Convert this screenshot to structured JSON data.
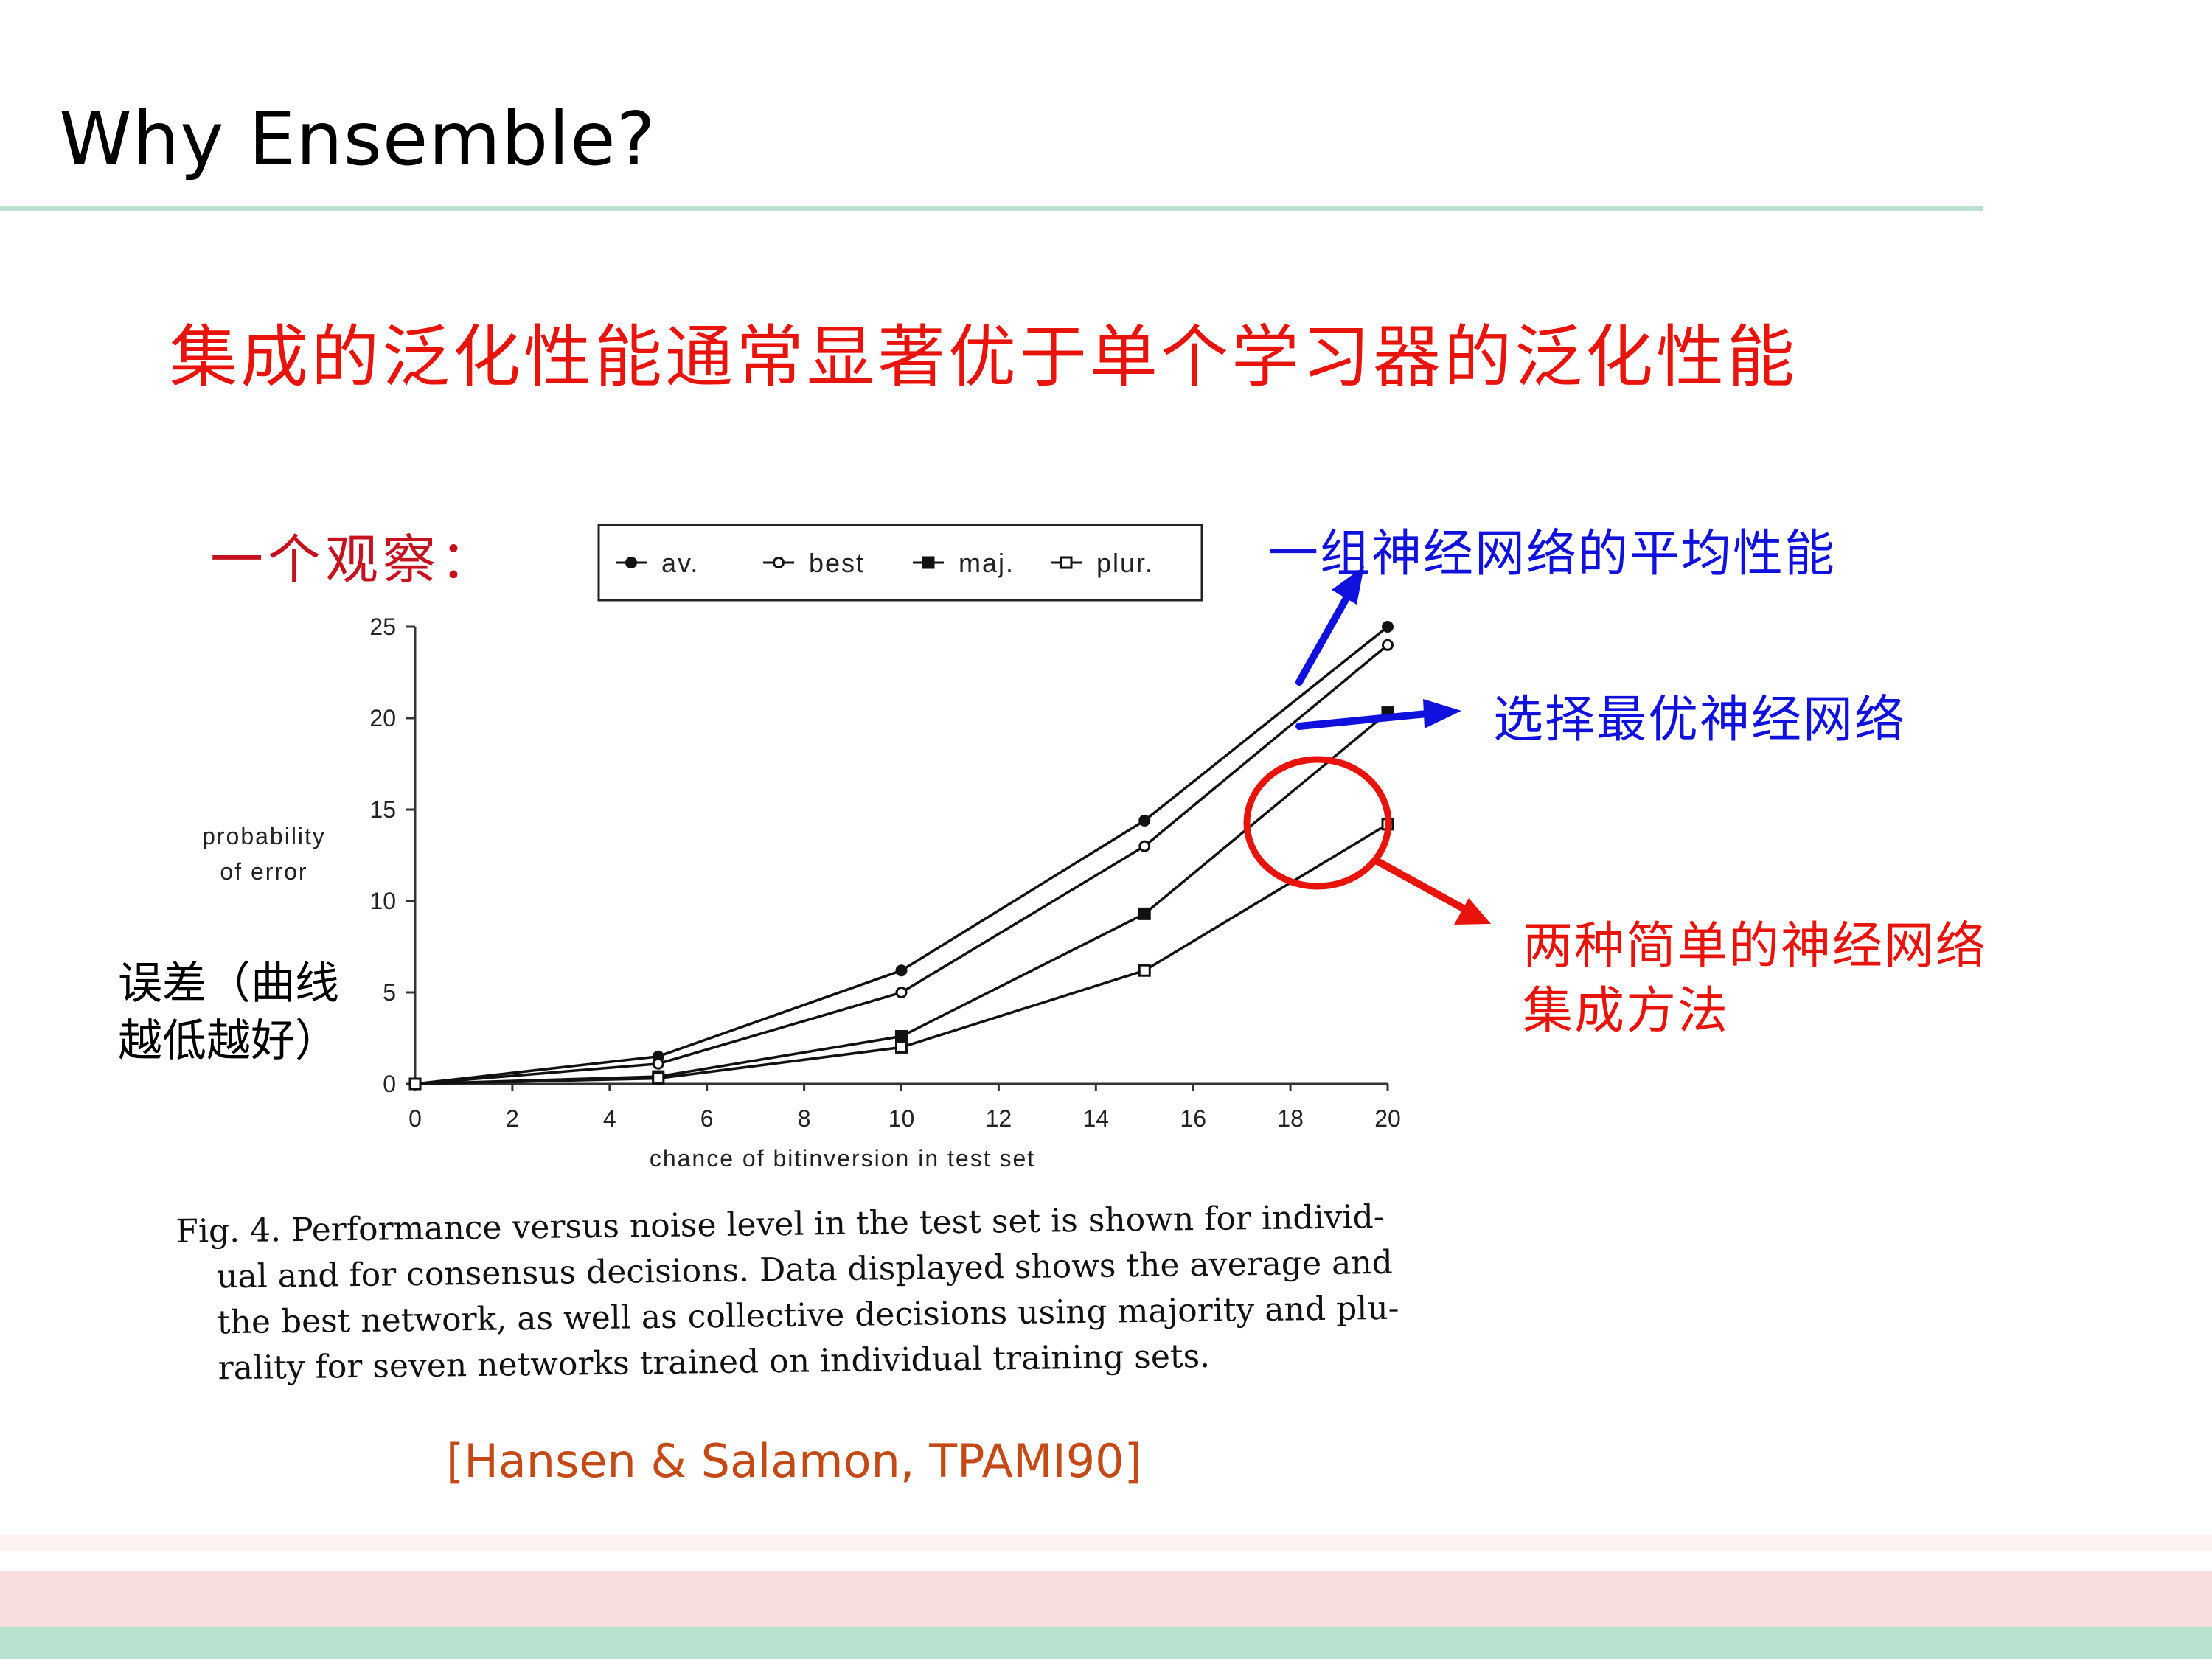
{
  "slide": {
    "title": "Why Ensemble?",
    "headline": "集成的泛化性能通常显著优于单个学习器的泛化性能",
    "observation_label": "一个观察：",
    "citation": "[Hansen & Salamon, TPAMI90]",
    "colors": {
      "headline": "#e8140c",
      "annotation_blue": "#1111dd",
      "citation": "#c34a16",
      "accent_rule": "#b8e2cf"
    }
  },
  "annotations": {
    "average": "一组神经网络的平均性能",
    "best": "选择最优神经网络",
    "ensemble_lines": [
      "两种简单的神经网络",
      "集成方法"
    ],
    "error_lines": [
      "误差（曲线",
      "越低越好）"
    ]
  },
  "caption": {
    "lines": [
      "Fig. 4.  Performance versus noise level in the test set is shown for individ-",
      "ual and for consensus decisions. Data displayed shows the average and",
      "the best network, as well as collective decisions using majority and plu-",
      "rality for seven networks trained on individual training sets."
    ]
  },
  "chart_data": {
    "type": "line",
    "xlabel": "chance of bitinversion in test set",
    "ylabel": "probability of error",
    "ylabel_lines": [
      "probability",
      "of error"
    ],
    "xlim": [
      0,
      20
    ],
    "ylim": [
      0,
      25
    ],
    "xticks": [
      0,
      2,
      4,
      6,
      8,
      10,
      12,
      14,
      16,
      18,
      20
    ],
    "yticks": [
      0,
      5,
      10,
      15,
      20,
      25
    ],
    "legend_position": "top",
    "series": [
      {
        "name": "av.",
        "marker": "filled-circle",
        "x": [
          0,
          5,
          10,
          15,
          20
        ],
        "y": [
          0,
          1.5,
          6.2,
          14.4,
          25.0
        ]
      },
      {
        "name": "best",
        "marker": "open-circle",
        "x": [
          0,
          5,
          10,
          15,
          20
        ],
        "y": [
          0,
          1.1,
          5.0,
          13.0,
          24.0
        ]
      },
      {
        "name": "maj.",
        "marker": "filled-square",
        "x": [
          0,
          5,
          10,
          15,
          20
        ],
        "y": [
          0,
          0.4,
          2.6,
          9.3,
          20.3
        ]
      },
      {
        "name": "plur.",
        "marker": "open-square",
        "x": [
          0,
          5,
          10,
          15,
          20
        ],
        "y": [
          0,
          0.3,
          2.0,
          6.2,
          14.2
        ]
      }
    ]
  }
}
